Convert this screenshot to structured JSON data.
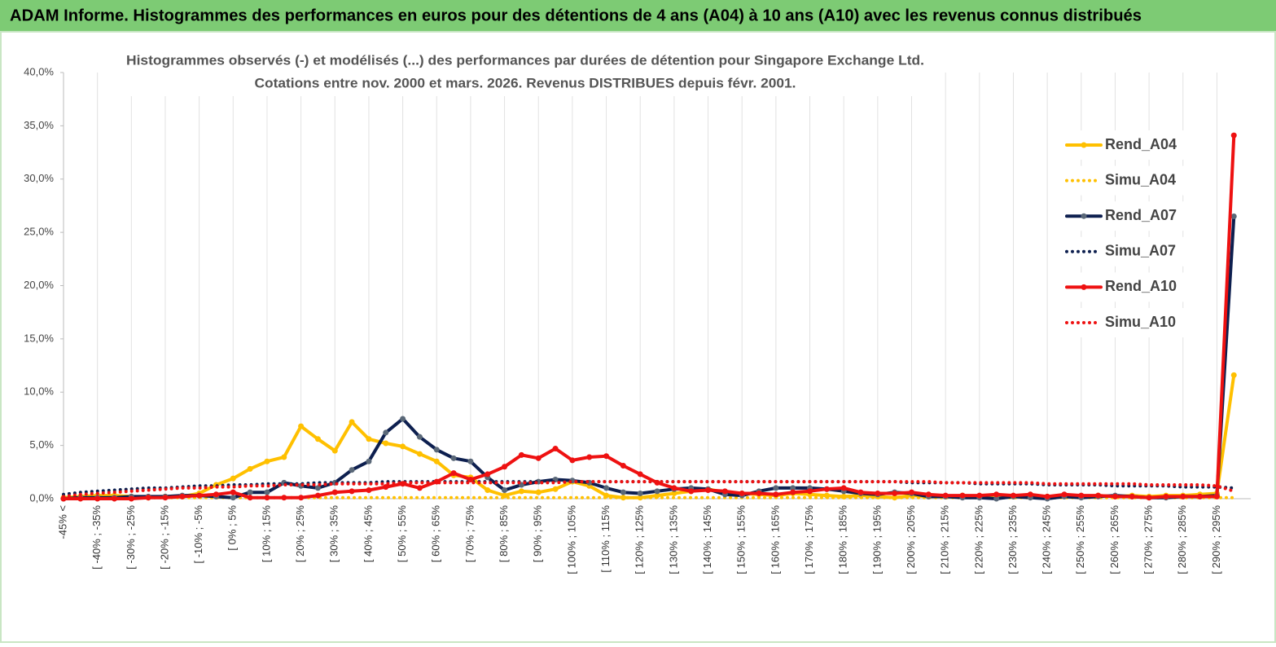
{
  "header": {
    "title": "ADAM Informe. Histogrammes des performances en euros pour des détentions de 4 ans (A04) à 10 ans (A10) avec les revenus connus distribués"
  },
  "chart_data": {
    "type": "line",
    "title": "Histogrammes observés (-)  et modélisés (...) des performances par durées de détention pour Singapore Exchange Ltd.",
    "subtitle": "Cotations entre nov. 2000 et mars. 2026. Revenus DISTRIBUES depuis févr. 2001.",
    "categories": [
      "-45% <",
      null,
      "[ -40% ; -35%",
      null,
      "[ -30% ; -25%",
      null,
      "[ -20% ; -15%",
      null,
      "[ -10% ; -5%",
      null,
      "[ 0% ; 5%",
      null,
      "[ 10% ; 15%",
      null,
      "[ 20% ; 25%",
      null,
      "[ 30% ; 35%",
      null,
      "[ 40% ; 45%",
      null,
      "[ 50% ; 55%",
      null,
      "[ 60% ; 65%",
      null,
      "[ 70% ; 75%",
      null,
      "[ 80% ; 85%",
      null,
      "[ 90% ; 95%",
      null,
      "[ 100% ; 105%",
      null,
      "[ 110% ; 115%",
      null,
      "[ 120% ; 125%",
      null,
      "[ 130% ; 135%",
      null,
      "[ 140% ; 145%",
      null,
      "[ 150% ; 155%",
      null,
      "[ 160% ; 165%",
      null,
      "[ 170% ; 175%",
      null,
      "[ 180% ; 185%",
      null,
      "[ 190% ; 195%",
      null,
      "[ 200% ; 205%",
      null,
      "[ 210% ; 215%",
      null,
      "[ 220% ; 225%",
      null,
      "[ 230% ; 235%",
      null,
      "[ 240% ; 245%",
      null,
      "[ 250% ; 255%",
      null,
      "[ 260% ; 265%",
      null,
      "[ 270% ; 275%",
      null,
      "[ 280% ; 285%",
      null,
      "[ 290% ; 295%",
      null
    ],
    "series": [
      {
        "name": "Rend_A04",
        "color": "#ffc000",
        "style": "solid",
        "values": [
          0.1,
          0.2,
          0.3,
          0.3,
          0.2,
          0.1,
          0.2,
          0.2,
          0.5,
          1.3,
          1.9,
          2.8,
          3.5,
          3.9,
          6.8,
          5.6,
          4.5,
          7.2,
          5.6,
          5.2,
          4.9,
          4.2,
          3.5,
          2.2,
          2.0,
          0.8,
          0.3,
          0.7,
          0.6,
          0.9,
          1.6,
          1.2,
          0.3,
          0.1,
          0.1,
          0.3,
          0.5,
          0.7,
          0.9,
          0.6,
          0.5,
          0.4,
          0.3,
          0.5,
          0.4,
          0.3,
          0.2,
          0.3,
          0.2,
          0.1,
          0.3,
          0.2,
          0.2,
          0.3,
          0.2,
          0.3,
          0.2,
          0.3,
          0.2,
          0.3,
          0.2,
          0.3,
          0.2,
          0.3,
          0.2,
          0.3,
          0.3,
          0.4,
          0.5,
          11.6
        ]
      },
      {
        "name": "Simu_A04",
        "color": "#ffc000",
        "style": "dotted",
        "values": [
          0.1,
          0.1,
          0.1,
          0.1,
          0.1,
          0.1,
          0.1,
          0.1,
          0.1,
          0.1,
          0.1,
          0.1,
          0.1,
          0.1,
          0.1,
          0.1,
          0.1,
          0.1,
          0.1,
          0.1,
          0.1,
          0.1,
          0.1,
          0.1,
          0.1,
          0.1,
          0.1,
          0.1,
          0.1,
          0.1,
          0.1,
          0.1,
          0.1,
          0.1,
          0.1,
          0.1,
          0.1,
          0.1,
          0.1,
          0.1,
          0.1,
          0.1,
          0.1,
          0.1,
          0.1,
          0.1,
          0.1,
          0.1,
          0.1,
          0.1,
          0.1,
          0.1,
          0.1,
          0.1,
          0.1,
          0.1,
          0.1,
          0.1,
          0.1,
          0.1,
          0.1,
          0.1,
          0.1,
          0.1,
          0.1,
          0.1,
          0.1,
          0.1,
          0.1,
          0.1
        ]
      },
      {
        "name": "Rend_A07",
        "color": "#0d1f4f",
        "marker": "#5a6878",
        "style": "solid",
        "values": [
          0.0,
          0.1,
          0.1,
          0.1,
          0.2,
          0.2,
          0.2,
          0.3,
          0.3,
          0.2,
          0.1,
          0.6,
          0.6,
          1.5,
          1.2,
          1.0,
          1.5,
          2.7,
          3.5,
          6.2,
          7.5,
          5.8,
          4.6,
          3.8,
          3.5,
          2.0,
          0.8,
          1.3,
          1.6,
          1.8,
          1.7,
          1.5,
          1.0,
          0.6,
          0.5,
          0.7,
          0.9,
          1.0,
          0.9,
          0.4,
          0.3,
          0.7,
          1.0,
          1.0,
          1.0,
          0.9,
          0.7,
          0.5,
          0.4,
          0.6,
          0.5,
          0.2,
          0.2,
          0.1,
          0.1,
          0.0,
          0.2,
          0.1,
          0.0,
          0.2,
          0.1,
          0.2,
          0.3,
          0.2,
          0.1,
          0.1,
          0.2,
          0.2,
          0.3,
          26.5
        ]
      },
      {
        "name": "Simu_A07",
        "color": "#0d1f4f",
        "style": "dotted",
        "values": [
          0.4,
          0.6,
          0.7,
          0.8,
          0.9,
          1.0,
          1.0,
          1.1,
          1.2,
          1.2,
          1.3,
          1.3,
          1.4,
          1.4,
          1.4,
          1.5,
          1.5,
          1.5,
          1.5,
          1.6,
          1.6,
          1.6,
          1.6,
          1.6,
          1.6,
          1.6,
          1.6,
          1.6,
          1.6,
          1.6,
          1.6,
          1.6,
          1.6,
          1.6,
          1.6,
          1.6,
          1.6,
          1.6,
          1.6,
          1.6,
          1.6,
          1.6,
          1.6,
          1.6,
          1.6,
          1.6,
          1.6,
          1.6,
          1.6,
          1.6,
          1.5,
          1.5,
          1.5,
          1.5,
          1.4,
          1.4,
          1.4,
          1.4,
          1.3,
          1.3,
          1.3,
          1.3,
          1.2,
          1.2,
          1.2,
          1.2,
          1.1,
          1.1,
          1.1,
          1.0
        ]
      },
      {
        "name": "Rend_A10",
        "color": "#ee1111",
        "style": "solid",
        "values": [
          0.0,
          0.0,
          0.0,
          0.0,
          0.0,
          0.1,
          0.1,
          0.2,
          0.3,
          0.4,
          0.6,
          0.1,
          0.1,
          0.1,
          0.1,
          0.3,
          0.6,
          0.7,
          0.8,
          1.1,
          1.4,
          1.0,
          1.6,
          2.4,
          1.8,
          2.3,
          3.0,
          4.1,
          3.8,
          4.7,
          3.6,
          3.9,
          4.0,
          3.1,
          2.3,
          1.5,
          1.0,
          0.7,
          0.8,
          0.7,
          0.5,
          0.5,
          0.4,
          0.6,
          0.7,
          0.9,
          1.0,
          0.6,
          0.5,
          0.5,
          0.6,
          0.4,
          0.3,
          0.3,
          0.3,
          0.4,
          0.3,
          0.4,
          0.2,
          0.4,
          0.3,
          0.3,
          0.2,
          0.2,
          0.1,
          0.2,
          0.2,
          0.2,
          0.2,
          34.1
        ]
      },
      {
        "name": "Simu_A10",
        "color": "#ee1111",
        "style": "dotted",
        "values": [
          0.2,
          0.4,
          0.5,
          0.6,
          0.7,
          0.8,
          0.9,
          1.0,
          1.0,
          1.1,
          1.1,
          1.2,
          1.2,
          1.3,
          1.3,
          1.3,
          1.4,
          1.4,
          1.4,
          1.4,
          1.5,
          1.5,
          1.5,
          1.5,
          1.5,
          1.5,
          1.5,
          1.5,
          1.5,
          1.5,
          1.6,
          1.6,
          1.6,
          1.6,
          1.6,
          1.6,
          1.6,
          1.6,
          1.6,
          1.6,
          1.6,
          1.6,
          1.6,
          1.6,
          1.6,
          1.6,
          1.6,
          1.6,
          1.6,
          1.6,
          1.6,
          1.6,
          1.5,
          1.5,
          1.5,
          1.5,
          1.5,
          1.5,
          1.4,
          1.4,
          1.4,
          1.4,
          1.4,
          1.4,
          1.3,
          1.3,
          1.3,
          1.3,
          1.2,
          0.7
        ]
      }
    ],
    "ylim": [
      0,
      40
    ],
    "yticks": [
      {
        "value": 0,
        "label": "0,0%"
      },
      {
        "value": 5,
        "label": "5,0%"
      },
      {
        "value": 10,
        "label": "10,0%"
      },
      {
        "value": 15,
        "label": "15,0%"
      },
      {
        "value": 20,
        "label": "20,0%"
      },
      {
        "value": 25,
        "label": "25,0%"
      },
      {
        "value": 30,
        "label": "30,0%"
      },
      {
        "value": 35,
        "label": "35,0%"
      },
      {
        "value": 40,
        "label": "40,0%"
      }
    ],
    "grid": true,
    "legend": "right"
  }
}
